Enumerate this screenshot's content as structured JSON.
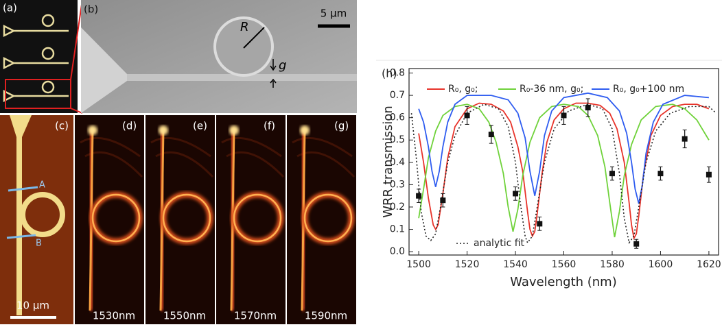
{
  "panels": {
    "a": "(a)",
    "b": "(b)",
    "b_scale": "5 µm",
    "b_R": "R",
    "b_g": "g",
    "c": "(c)",
    "c_A": "A",
    "c_B": "B",
    "c_scale": "10 µm",
    "d": "(d)",
    "e": "(e)",
    "f": "(f)",
    "g": "(g)",
    "d_wl": "1530nm",
    "e_wl": "1550nm",
    "f_wl": "1570nm",
    "g_wl": "1590nm"
  },
  "chart_data": {
    "type": "line",
    "panel_label": "(h)",
    "x_label": "Wavelength (nm)",
    "y_label": "WRR transmission",
    "xlim": [
      1496,
      1624
    ],
    "ylim": [
      -0.015,
      0.82
    ],
    "xticks": [
      1500,
      1520,
      1540,
      1560,
      1580,
      1600,
      1620
    ],
    "yticks": [
      {
        "value": 0,
        "label": "0.0"
      },
      0.1,
      0.2,
      0.3,
      0.4,
      0.5,
      0.6,
      0.7,
      0.8
    ],
    "series": [
      {
        "name": "R₀, g₀;",
        "color": "#e8332a",
        "dash": false,
        "x": [
          1500,
          1502,
          1504,
          1506,
          1507,
          1508,
          1510,
          1512,
          1515,
          1520,
          1525,
          1530,
          1535,
          1538,
          1541,
          1543,
          1545,
          1546,
          1547,
          1548,
          1549,
          1551,
          1553,
          1556,
          1560,
          1565,
          1570,
          1575,
          1579,
          1582,
          1585,
          1587,
          1588,
          1589,
          1590,
          1591,
          1593,
          1596,
          1600,
          1605,
          1610,
          1615,
          1620
        ],
        "values": [
          0.53,
          0.4,
          0.24,
          0.12,
          0.1,
          0.12,
          0.26,
          0.42,
          0.56,
          0.64,
          0.665,
          0.66,
          0.63,
          0.58,
          0.47,
          0.36,
          0.18,
          0.1,
          0.07,
          0.09,
          0.17,
          0.35,
          0.49,
          0.59,
          0.64,
          0.665,
          0.665,
          0.655,
          0.62,
          0.55,
          0.4,
          0.22,
          0.12,
          0.06,
          0.08,
          0.16,
          0.35,
          0.52,
          0.61,
          0.65,
          0.66,
          0.66,
          0.64
        ]
      },
      {
        "name": "R₀-36 nm, g₀;",
        "color": "#6fd23a",
        "dash": false,
        "x": [
          1500,
          1502,
          1504,
          1507,
          1510,
          1515,
          1520,
          1525,
          1529,
          1532,
          1535,
          1537,
          1539,
          1541,
          1543,
          1546,
          1550,
          1555,
          1560,
          1566,
          1570,
          1574,
          1577,
          1579,
          1581,
          1583,
          1585,
          1588,
          1592,
          1598,
          1605,
          1610,
          1615,
          1620
        ],
        "values": [
          0.15,
          0.28,
          0.42,
          0.54,
          0.61,
          0.65,
          0.66,
          0.64,
          0.58,
          0.49,
          0.35,
          0.2,
          0.09,
          0.19,
          0.34,
          0.49,
          0.6,
          0.65,
          0.66,
          0.65,
          0.61,
          0.52,
          0.38,
          0.22,
          0.065,
          0.18,
          0.34,
          0.48,
          0.59,
          0.65,
          0.66,
          0.64,
          0.59,
          0.5
        ]
      },
      {
        "name": "R₀, g₀+100 nm",
        "color": "#2e5cf0",
        "dash": false,
        "x": [
          1500,
          1502,
          1504,
          1505.5,
          1507,
          1508.5,
          1510,
          1512,
          1515,
          1520,
          1530,
          1537,
          1541,
          1544,
          1546,
          1548,
          1550,
          1552,
          1555,
          1560,
          1570,
          1578,
          1583,
          1586,
          1588,
          1589.5,
          1591,
          1592.5,
          1594,
          1597,
          1601,
          1610,
          1620
        ],
        "values": [
          0.64,
          0.58,
          0.47,
          0.36,
          0.29,
          0.36,
          0.47,
          0.58,
          0.66,
          0.7,
          0.7,
          0.68,
          0.62,
          0.51,
          0.36,
          0.25,
          0.36,
          0.52,
          0.63,
          0.69,
          0.71,
          0.69,
          0.63,
          0.53,
          0.4,
          0.28,
          0.215,
          0.3,
          0.44,
          0.58,
          0.66,
          0.7,
          0.69
        ]
      },
      {
        "name": "analytic fit",
        "color": "#222222",
        "dash": true,
        "x": [
          1497,
          1499,
          1501,
          1503,
          1505,
          1507,
          1509,
          1512,
          1515,
          1520,
          1527,
          1533,
          1537,
          1540,
          1542,
          1544,
          1545,
          1547,
          1549,
          1552,
          1556,
          1562,
          1570,
          1576,
          1580,
          1583,
          1585,
          1587,
          1589,
          1591,
          1594,
          1598,
          1604,
          1612,
          1620,
          1623
        ],
        "values": [
          0.62,
          0.42,
          0.18,
          0.07,
          0.05,
          0.08,
          0.2,
          0.4,
          0.52,
          0.62,
          0.66,
          0.64,
          0.56,
          0.4,
          0.22,
          0.07,
          0.04,
          0.07,
          0.2,
          0.4,
          0.55,
          0.63,
          0.66,
          0.64,
          0.55,
          0.35,
          0.15,
          0.04,
          0.07,
          0.2,
          0.4,
          0.54,
          0.62,
          0.65,
          0.65,
          0.62
        ]
      }
    ],
    "points": {
      "color": "#111111",
      "x": [
        1500,
        1510,
        1520,
        1530,
        1540,
        1550,
        1560,
        1570,
        1580,
        1590,
        1600,
        1610,
        1620
      ],
      "values": [
        0.25,
        0.23,
        0.61,
        0.525,
        0.26,
        0.125,
        0.61,
        0.645,
        0.35,
        0.035,
        0.35,
        0.505,
        0.345
      ],
      "errors": [
        0.03,
        0.03,
        0.04,
        0.04,
        0.03,
        0.03,
        0.04,
        0.04,
        0.03,
        0.02,
        0.03,
        0.04,
        0.035
      ]
    }
  }
}
